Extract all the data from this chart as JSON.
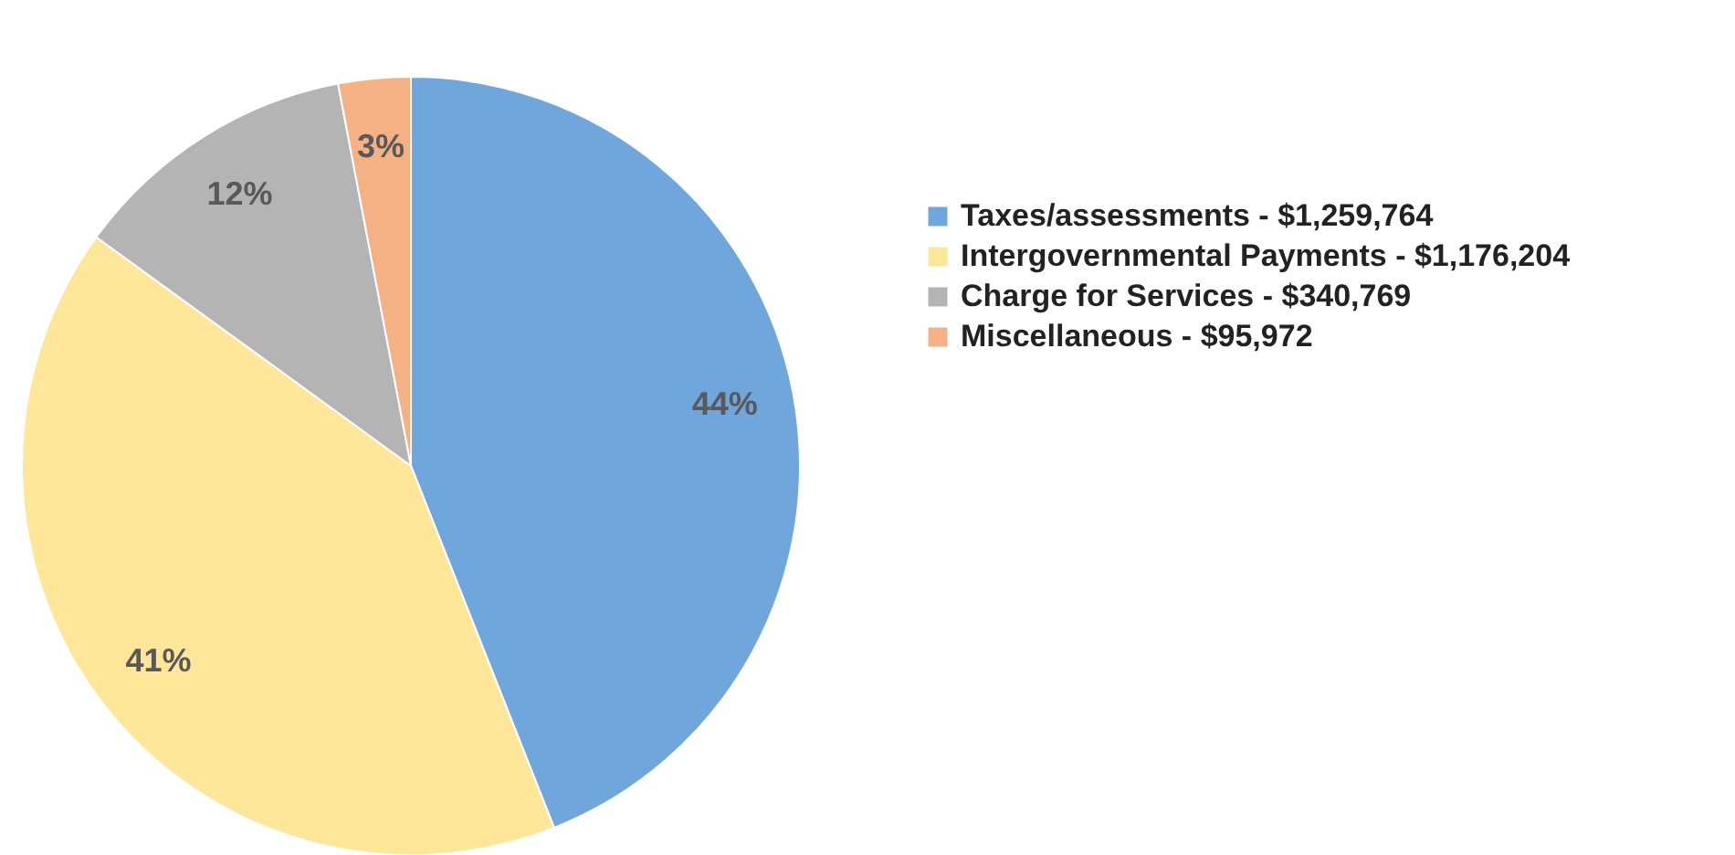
{
  "chart_data": {
    "type": "pie",
    "categories": [
      "Taxes/assessments - $1,259,764",
      "Intergovernmental Payments - $1,176,204",
      "Charge for Services - $340,769",
      "Miscellaneous - $95,972"
    ],
    "values": [
      44,
      41,
      12,
      3
    ],
    "colors": [
      "#6fa6dc",
      "#ffe699",
      "#b4b4b4",
      "#f4b183"
    ],
    "value_labels": [
      "44%",
      "41%",
      "12%",
      "3%"
    ],
    "legend": "right"
  }
}
